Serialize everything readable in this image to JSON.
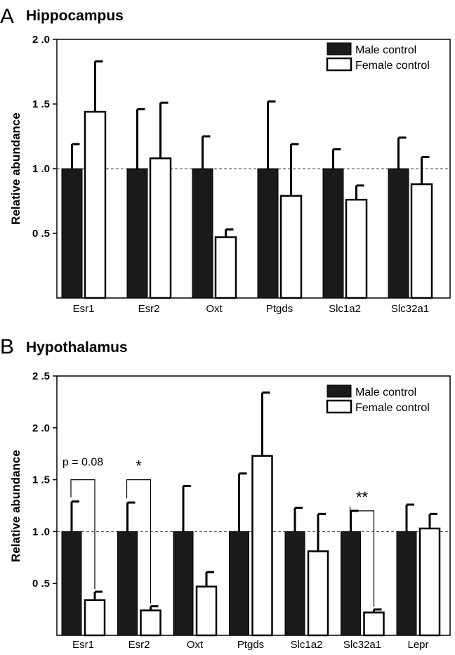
{
  "chart_data": [
    {
      "type": "bar",
      "panel_label": "A",
      "title": "Hippocampus",
      "xlabel": "",
      "ylabel": "Relative abundance",
      "ylim": [
        0,
        2.0
      ],
      "yticks": [
        "2 .0",
        "1 .5",
        "1 .0",
        "0 .5"
      ],
      "categories": [
        "Esr1",
        "Esr2",
        "Oxt",
        "Ptgds",
        "Slc1a2",
        "Slc32a1"
      ],
      "series": [
        {
          "name": "Male control",
          "fill": "#1a1a1a",
          "values": [
            1.0,
            1.0,
            1.0,
            1.0,
            1.0,
            1.0
          ],
          "errors": [
            0.19,
            0.46,
            0.25,
            0.52,
            0.15,
            0.24
          ]
        },
        {
          "name": "Female control",
          "fill": "#ffffff",
          "values": [
            1.44,
            1.08,
            0.47,
            0.79,
            0.76,
            0.88
          ],
          "errors": [
            0.39,
            0.43,
            0.06,
            0.4,
            0.11,
            0.21
          ]
        }
      ],
      "reference_line": 1.0,
      "legend_position": "top-right",
      "annotations": []
    },
    {
      "type": "bar",
      "panel_label": "B",
      "title": "Hypothalamus",
      "xlabel": "",
      "ylabel": "Relative abundance",
      "ylim": [
        0,
        2.5
      ],
      "yticks": [
        "2 .5",
        "2 .0",
        "1 .5",
        "1 .0",
        "0 .5"
      ],
      "categories": [
        "Esr1",
        "Esr2",
        "Oxt",
        "Ptgds",
        "Slc1a2",
        "Slc32a1",
        "Lepr"
      ],
      "series": [
        {
          "name": "Male control",
          "fill": "#1a1a1a",
          "values": [
            1.0,
            1.0,
            1.0,
            1.0,
            1.0,
            1.0,
            1.0
          ],
          "errors": [
            0.29,
            0.28,
            0.44,
            0.56,
            0.23,
            0.2,
            0.26
          ]
        },
        {
          "name": "Female control",
          "fill": "#ffffff",
          "values": [
            0.34,
            0.24,
            0.47,
            1.73,
            0.81,
            0.22,
            1.03
          ],
          "errors": [
            0.08,
            0.04,
            0.14,
            0.61,
            0.36,
            0.03,
            0.14
          ]
        }
      ],
      "reference_line": 1.0,
      "legend_position": "top-right",
      "annotations": [
        {
          "category_index": 0,
          "text": "p = 0.08",
          "style": "text",
          "bracket_top": 1.5
        },
        {
          "category_index": 1,
          "text": "*",
          "style": "star",
          "bracket_top": 1.5
        },
        {
          "category_index": 5,
          "text": "**",
          "style": "star",
          "bracket_top": 1.2
        }
      ]
    }
  ]
}
